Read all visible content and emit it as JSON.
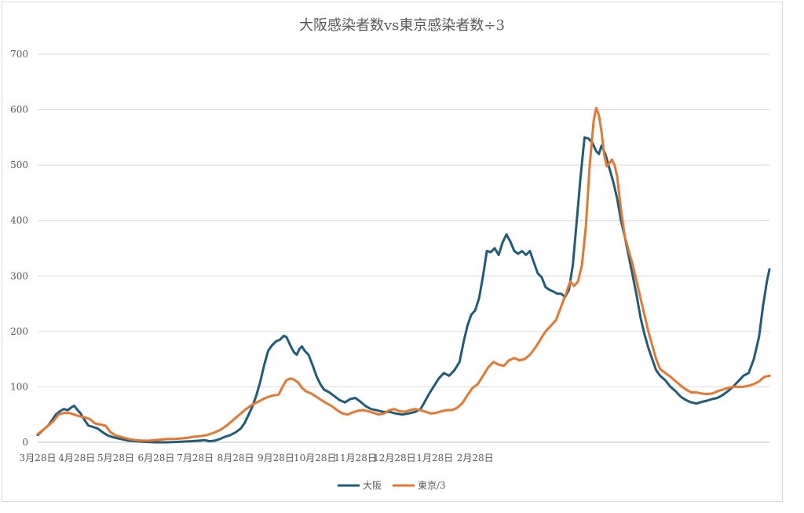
{
  "chart_data": {
    "type": "line",
    "title": "大阪感染者数vs東京感染者数÷3",
    "xlabel": "",
    "ylabel": "",
    "ylim": [
      0,
      700
    ],
    "yticks": [
      0,
      100,
      200,
      300,
      400,
      500,
      600,
      700
    ],
    "x_tick_labels": [
      "3月28日",
      "4月28日",
      "5月28日",
      "6月28日",
      "7月28日",
      "8月28日",
      "9月28日",
      "10月28日",
      "11月28日",
      "12月28日",
      "1月28日",
      "2月28日"
    ],
    "grid": "horizontal",
    "legend_position": "bottom",
    "colors": {
      "osaka": "#1f5c7a",
      "tokyo": "#e8772e",
      "grid": "#d9d9d9",
      "text": "#595959"
    },
    "series": [
      {
        "name": "大阪",
        "color": "#1f5c7a",
        "points": [
          [
            0,
            13
          ],
          [
            4,
            22
          ],
          [
            8,
            30
          ],
          [
            11,
            40
          ],
          [
            14,
            50
          ],
          [
            17,
            56
          ],
          [
            20,
            60
          ],
          [
            23,
            58
          ],
          [
            26,
            63
          ],
          [
            28,
            66
          ],
          [
            30,
            60
          ],
          [
            33,
            52
          ],
          [
            36,
            40
          ],
          [
            39,
            30
          ],
          [
            42,
            28
          ],
          [
            46,
            25
          ],
          [
            50,
            18
          ],
          [
            54,
            12
          ],
          [
            58,
            9
          ],
          [
            62,
            7
          ],
          [
            66,
            5
          ],
          [
            70,
            3
          ],
          [
            75,
            2
          ],
          [
            80,
            1
          ],
          [
            90,
            0
          ],
          [
            100,
            0
          ],
          [
            110,
            1
          ],
          [
            118,
            2
          ],
          [
            124,
            3
          ],
          [
            128,
            4
          ],
          [
            132,
            2
          ],
          [
            136,
            3
          ],
          [
            140,
            6
          ],
          [
            144,
            10
          ],
          [
            148,
            13
          ],
          [
            152,
            18
          ],
          [
            156,
            25
          ],
          [
            159,
            35
          ],
          [
            162,
            50
          ],
          [
            165,
            65
          ],
          [
            168,
            85
          ],
          [
            171,
            110
          ],
          [
            174,
            140
          ],
          [
            177,
            165
          ],
          [
            180,
            175
          ],
          [
            183,
            182
          ],
          [
            186,
            185
          ],
          [
            189,
            192
          ],
          [
            191,
            190
          ],
          [
            193,
            180
          ],
          [
            195,
            170
          ],
          [
            197,
            162
          ],
          [
            199,
            158
          ],
          [
            201,
            168
          ],
          [
            203,
            173
          ],
          [
            205,
            165
          ],
          [
            208,
            158
          ],
          [
            211,
            140
          ],
          [
            214,
            120
          ],
          [
            217,
            105
          ],
          [
            220,
            95
          ],
          [
            224,
            90
          ],
          [
            228,
            83
          ],
          [
            232,
            76
          ],
          [
            236,
            72
          ],
          [
            240,
            78
          ],
          [
            244,
            80
          ],
          [
            248,
            73
          ],
          [
            252,
            65
          ],
          [
            256,
            60
          ],
          [
            260,
            58
          ],
          [
            265,
            55
          ],
          [
            270,
            55
          ],
          [
            275,
            52
          ],
          [
            280,
            50
          ],
          [
            285,
            52
          ],
          [
            290,
            55
          ],
          [
            294,
            60
          ],
          [
            297,
            72
          ],
          [
            300,
            85
          ],
          [
            304,
            100
          ],
          [
            308,
            115
          ],
          [
            312,
            125
          ],
          [
            316,
            120
          ],
          [
            320,
            130
          ],
          [
            324,
            145
          ],
          [
            327,
            180
          ],
          [
            330,
            210
          ],
          [
            333,
            230
          ],
          [
            336,
            238
          ],
          [
            339,
            260
          ],
          [
            342,
            300
          ],
          [
            345,
            345
          ],
          [
            348,
            343
          ],
          [
            351,
            350
          ],
          [
            354,
            338
          ],
          [
            357,
            360
          ],
          [
            360,
            375
          ],
          [
            363,
            362
          ],
          [
            366,
            345
          ],
          [
            369,
            340
          ],
          [
            372,
            345
          ],
          [
            375,
            338
          ],
          [
            378,
            345
          ],
          [
            381,
            325
          ],
          [
            384,
            305
          ],
          [
            387,
            298
          ],
          [
            390,
            280
          ],
          [
            393,
            275
          ],
          [
            396,
            272
          ],
          [
            399,
            268
          ],
          [
            402,
            268
          ],
          [
            405,
            262
          ],
          [
            408,
            275
          ],
          [
            411,
            320
          ],
          [
            414,
            400
          ],
          [
            417,
            480
          ],
          [
            420,
            550
          ],
          [
            423,
            548
          ],
          [
            426,
            540
          ],
          [
            429,
            525
          ],
          [
            431,
            520
          ],
          [
            433,
            535
          ],
          [
            436,
            520
          ],
          [
            439,
            495
          ],
          [
            442,
            470
          ],
          [
            445,
            440
          ],
          [
            448,
            400
          ],
          [
            451,
            370
          ],
          [
            454,
            335
          ],
          [
            457,
            300
          ],
          [
            460,
            265
          ],
          [
            463,
            225
          ],
          [
            466,
            195
          ],
          [
            469,
            170
          ],
          [
            472,
            150
          ],
          [
            475,
            130
          ],
          [
            478,
            120
          ],
          [
            482,
            112
          ],
          [
            486,
            100
          ],
          [
            490,
            92
          ],
          [
            494,
            82
          ],
          [
            498,
            76
          ],
          [
            502,
            72
          ],
          [
            506,
            70
          ],
          [
            510,
            73
          ],
          [
            514,
            75
          ],
          [
            518,
            78
          ],
          [
            522,
            80
          ],
          [
            526,
            85
          ],
          [
            530,
            92
          ],
          [
            534,
            100
          ],
          [
            538,
            110
          ],
          [
            542,
            120
          ],
          [
            546,
            125
          ],
          [
            550,
            150
          ],
          [
            554,
            190
          ],
          [
            557,
            245
          ],
          [
            560,
            290
          ],
          [
            562,
            312
          ]
        ]
      },
      {
        "name": "東京/3",
        "color": "#e8772e",
        "points": [
          [
            0,
            15
          ],
          [
            4,
            22
          ],
          [
            8,
            30
          ],
          [
            12,
            38
          ],
          [
            16,
            50
          ],
          [
            20,
            53
          ],
          [
            24,
            53
          ],
          [
            28,
            50
          ],
          [
            32,
            47
          ],
          [
            36,
            45
          ],
          [
            40,
            42
          ],
          [
            44,
            34
          ],
          [
            48,
            32
          ],
          [
            52,
            30
          ],
          [
            56,
            18
          ],
          [
            60,
            12
          ],
          [
            65,
            9
          ],
          [
            70,
            6
          ],
          [
            75,
            4
          ],
          [
            80,
            3
          ],
          [
            85,
            3
          ],
          [
            90,
            4
          ],
          [
            95,
            5
          ],
          [
            100,
            6
          ],
          [
            105,
            6
          ],
          [
            110,
            7
          ],
          [
            115,
            8
          ],
          [
            120,
            10
          ],
          [
            125,
            11
          ],
          [
            130,
            13
          ],
          [
            135,
            17
          ],
          [
            140,
            22
          ],
          [
            145,
            30
          ],
          [
            150,
            40
          ],
          [
            155,
            50
          ],
          [
            160,
            60
          ],
          [
            165,
            68
          ],
          [
            170,
            74
          ],
          [
            175,
            80
          ],
          [
            180,
            84
          ],
          [
            185,
            86
          ],
          [
            188,
            100
          ],
          [
            191,
            112
          ],
          [
            194,
            115
          ],
          [
            197,
            113
          ],
          [
            200,
            108
          ],
          [
            203,
            98
          ],
          [
            206,
            92
          ],
          [
            210,
            88
          ],
          [
            214,
            82
          ],
          [
            218,
            76
          ],
          [
            222,
            70
          ],
          [
            226,
            65
          ],
          [
            230,
            58
          ],
          [
            234,
            52
          ],
          [
            238,
            50
          ],
          [
            242,
            54
          ],
          [
            246,
            57
          ],
          [
            250,
            58
          ],
          [
            254,
            56
          ],
          [
            258,
            53
          ],
          [
            262,
            50
          ],
          [
            266,
            52
          ],
          [
            270,
            58
          ],
          [
            274,
            60
          ],
          [
            278,
            56
          ],
          [
            282,
            55
          ],
          [
            286,
            58
          ],
          [
            290,
            60
          ],
          [
            294,
            58
          ],
          [
            298,
            55
          ],
          [
            302,
            52
          ],
          [
            306,
            53
          ],
          [
            310,
            56
          ],
          [
            314,
            58
          ],
          [
            318,
            58
          ],
          [
            322,
            62
          ],
          [
            326,
            70
          ],
          [
            330,
            85
          ],
          [
            334,
            98
          ],
          [
            338,
            105
          ],
          [
            342,
            120
          ],
          [
            346,
            135
          ],
          [
            350,
            145
          ],
          [
            354,
            140
          ],
          [
            358,
            138
          ],
          [
            362,
            148
          ],
          [
            366,
            152
          ],
          [
            370,
            148
          ],
          [
            374,
            150
          ],
          [
            378,
            158
          ],
          [
            382,
            170
          ],
          [
            386,
            185
          ],
          [
            390,
            200
          ],
          [
            394,
            210
          ],
          [
            398,
            220
          ],
          [
            402,
            245
          ],
          [
            406,
            270
          ],
          [
            409,
            290
          ],
          [
            412,
            282
          ],
          [
            415,
            290
          ],
          [
            418,
            320
          ],
          [
            421,
            390
          ],
          [
            424,
            500
          ],
          [
            427,
            580
          ],
          [
            429,
            603
          ],
          [
            431,
            590
          ],
          [
            433,
            560
          ],
          [
            435,
            520
          ],
          [
            437,
            498
          ],
          [
            439,
            503
          ],
          [
            441,
            510
          ],
          [
            443,
            500
          ],
          [
            445,
            480
          ],
          [
            448,
            420
          ],
          [
            451,
            370
          ],
          [
            454,
            345
          ],
          [
            457,
            320
          ],
          [
            460,
            290
          ],
          [
            463,
            260
          ],
          [
            466,
            230
          ],
          [
            469,
            200
          ],
          [
            472,
            175
          ],
          [
            475,
            150
          ],
          [
            478,
            132
          ],
          [
            482,
            125
          ],
          [
            486,
            118
          ],
          [
            490,
            110
          ],
          [
            494,
            102
          ],
          [
            498,
            95
          ],
          [
            502,
            90
          ],
          [
            506,
            90
          ],
          [
            510,
            88
          ],
          [
            514,
            87
          ],
          [
            518,
            88
          ],
          [
            522,
            92
          ],
          [
            526,
            95
          ],
          [
            530,
            98
          ],
          [
            534,
            100
          ],
          [
            538,
            100
          ],
          [
            542,
            100
          ],
          [
            546,
            102
          ],
          [
            550,
            105
          ],
          [
            554,
            110
          ],
          [
            558,
            118
          ],
          [
            562,
            120
          ]
        ]
      }
    ]
  }
}
